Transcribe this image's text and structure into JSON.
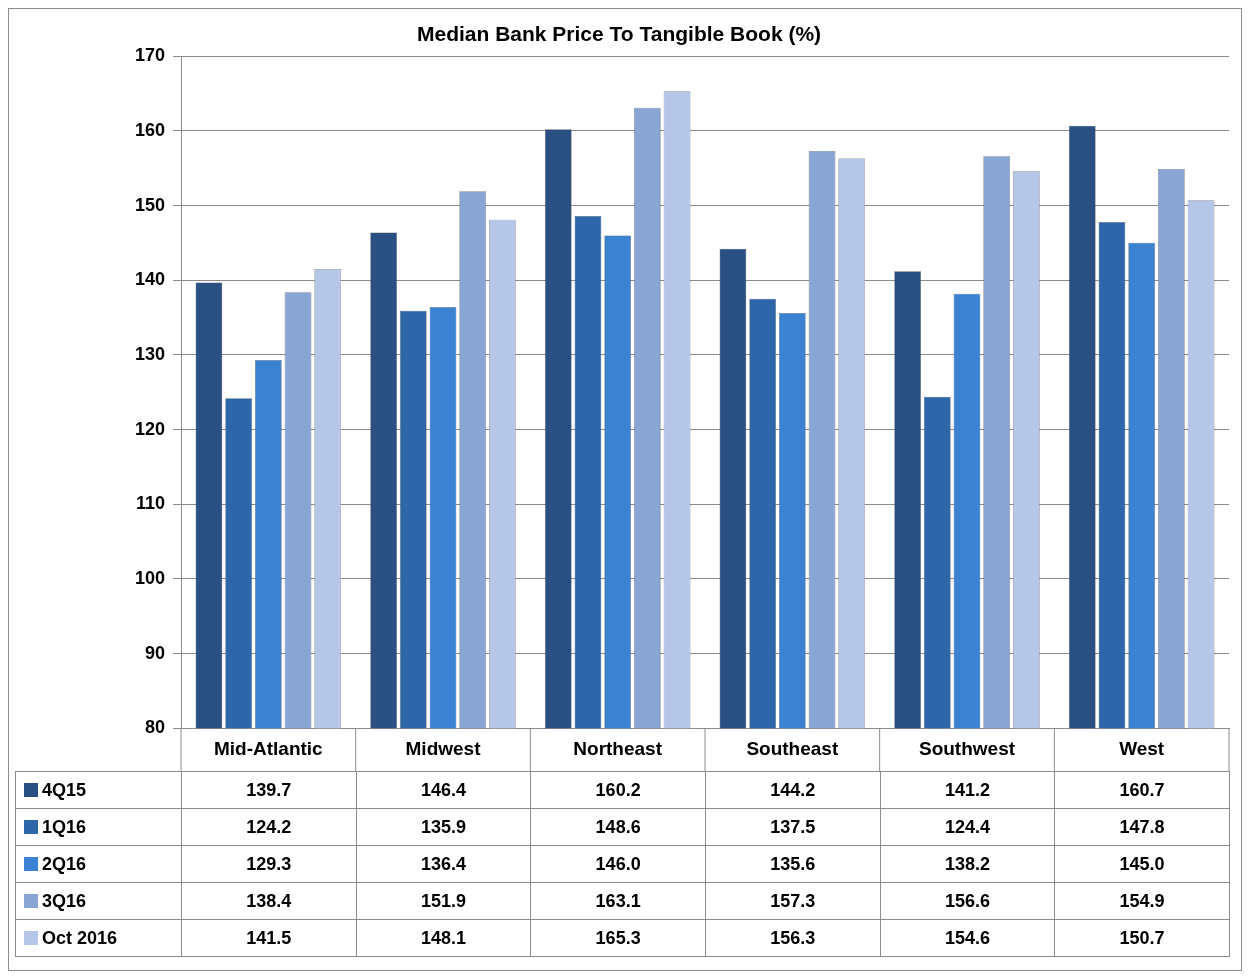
{
  "chart_data": {
    "type": "bar",
    "title": "Median Bank Price To Tangible Book (%)",
    "categories": [
      "Mid-Atlantic",
      "Midwest",
      "Northeast",
      "Southeast",
      "Southwest",
      "West"
    ],
    "series": [
      {
        "name": "4Q15",
        "color": "#2a4f82",
        "values": [
          139.7,
          146.4,
          160.2,
          144.2,
          141.2,
          160.7
        ],
        "value_labels": [
          "139.7",
          "146.4",
          "160.2",
          "144.2",
          "141.2",
          "160.7"
        ]
      },
      {
        "name": "1Q16",
        "color": "#2e66aa",
        "values": [
          124.2,
          135.9,
          148.6,
          137.5,
          124.4,
          147.8
        ],
        "value_labels": [
          "124.2",
          "135.9",
          "148.6",
          "137.5",
          "124.4",
          "147.8"
        ]
      },
      {
        "name": "2Q16",
        "color": "#3b82d2",
        "values": [
          129.3,
          136.4,
          146.0,
          135.6,
          138.2,
          145.0
        ],
        "value_labels": [
          "129.3",
          "136.4",
          "146.0",
          "135.6",
          "138.2",
          "145.0"
        ]
      },
      {
        "name": "3Q16",
        "color": "#89a5d4",
        "values": [
          138.4,
          151.9,
          163.1,
          157.3,
          156.6,
          154.9
        ],
        "value_labels": [
          "138.4",
          "151.9",
          "163.1",
          "157.3",
          "156.6",
          "154.9"
        ]
      },
      {
        "name": "Oct 2016",
        "color": "#b6c6e8",
        "values": [
          141.5,
          148.1,
          165.3,
          156.3,
          154.6,
          150.7
        ],
        "value_labels": [
          "141.5",
          "148.1",
          "165.3",
          "156.3",
          "154.6",
          "150.7"
        ]
      }
    ],
    "ylim": [
      80,
      170
    ],
    "yticks": [
      80,
      90,
      100,
      110,
      120,
      130,
      140,
      150,
      160,
      170
    ],
    "grid": "y",
    "legend": "bottom"
  }
}
